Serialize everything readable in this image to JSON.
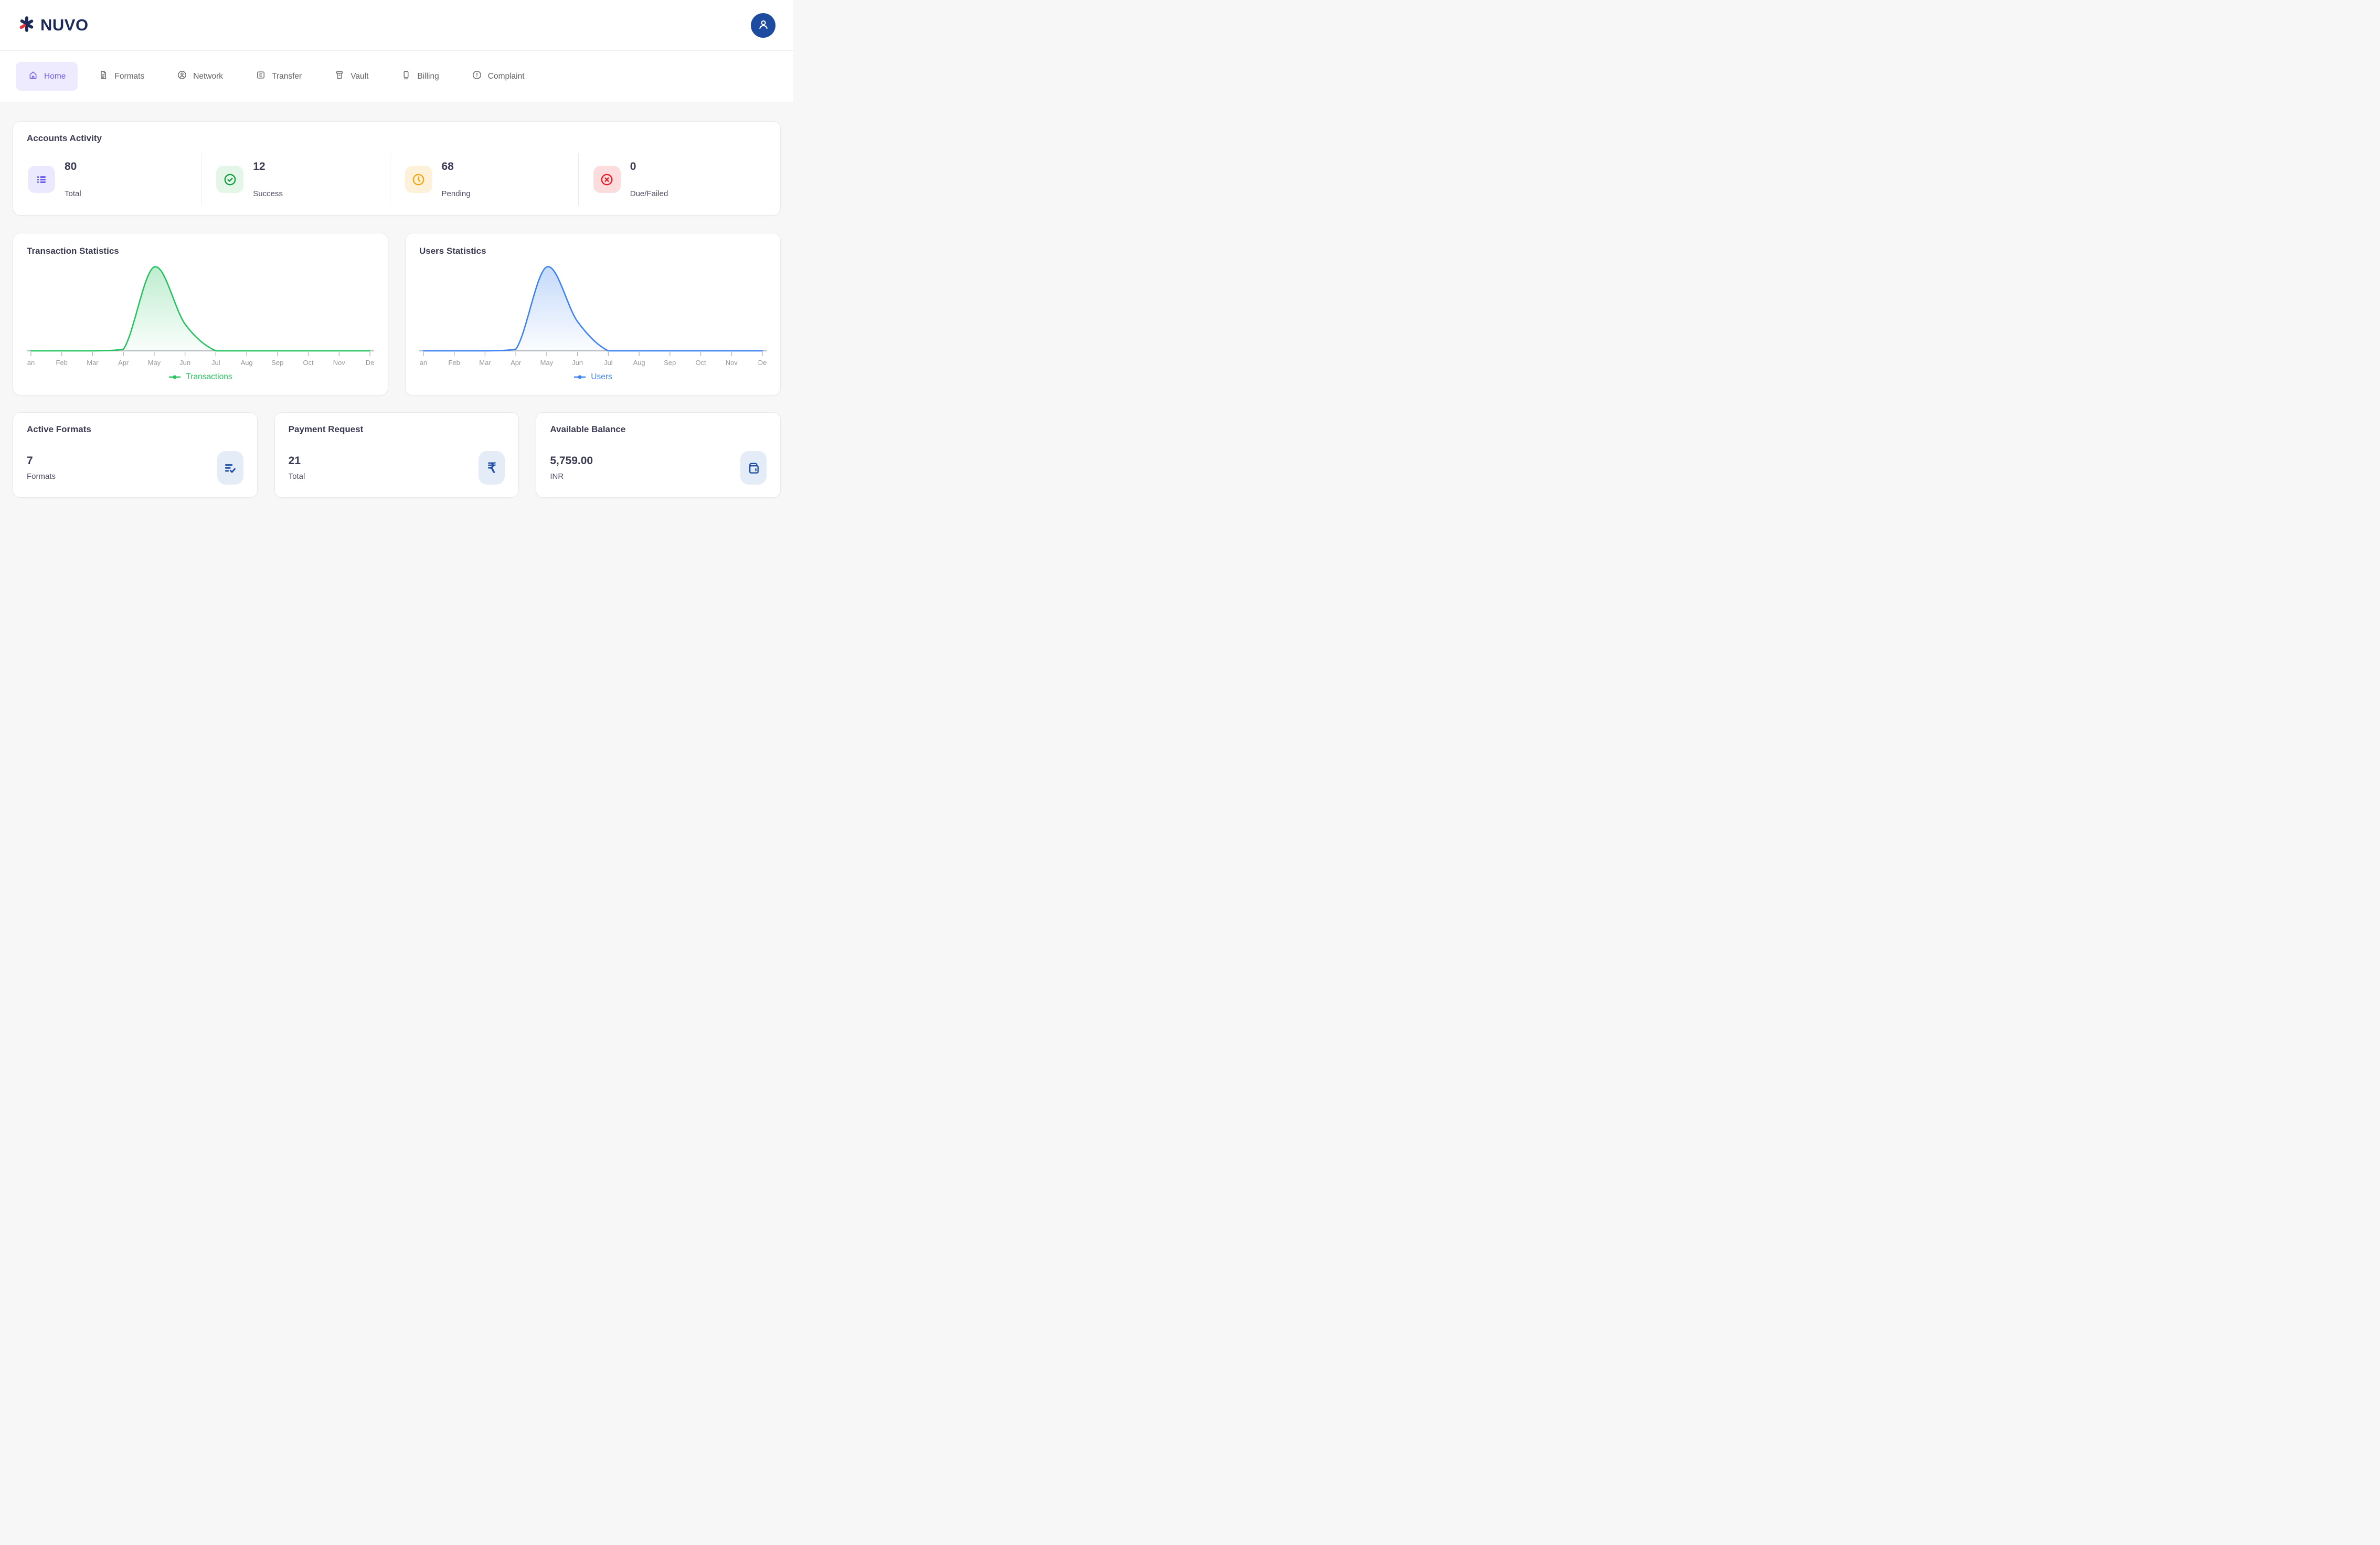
{
  "header": {
    "logo_text": "NUVO",
    "brand_navy": "#1c2a58",
    "brand_red": "#e9353e",
    "avatar_bg": "#1d4b9f"
  },
  "nav": {
    "items": [
      {
        "label": "Home",
        "icon": "home-icon",
        "active": true,
        "active_color": "#6e5ef0",
        "active_bg": "#edebfd"
      },
      {
        "label": "Formats",
        "icon": "document-icon",
        "active": false
      },
      {
        "label": "Network",
        "icon": "user-circle-icon",
        "active": false
      },
      {
        "label": "Transfer",
        "icon": "card-transfer-icon",
        "active": false
      },
      {
        "label": "Vault",
        "icon": "vault-icon",
        "active": false
      },
      {
        "label": "Billing",
        "icon": "billing-icon",
        "active": false
      },
      {
        "label": "Complaint",
        "icon": "alert-circle-icon",
        "active": false
      }
    ]
  },
  "accounts_activity": {
    "title": "Accounts Activity",
    "stats": [
      {
        "value": "80",
        "label": "Total",
        "icon": "list-icon",
        "accent": "#6b5bf0",
        "chip_bg": "#ebe9fd"
      },
      {
        "value": "12",
        "label": "Success",
        "icon": "check-circle-icon",
        "accent": "#109e3e",
        "chip_bg": "#e4f6e7"
      },
      {
        "value": "68",
        "label": "Pending",
        "icon": "clock-icon",
        "accent": "#f6a50b",
        "chip_bg": "#fdf1da"
      },
      {
        "value": "0",
        "label": "Due/Failed",
        "icon": "x-circle-icon",
        "accent": "#ee1b24",
        "chip_bg": "#fcdcdd"
      }
    ]
  },
  "chart_data": [
    {
      "type": "area",
      "title": "Transaction Statistics",
      "legend": "Transactions",
      "color": "#25c35f",
      "x_ticks": [
        "an",
        "Feb",
        "Mar",
        "Apr",
        "May",
        "Jun",
        "Jul",
        "Aug",
        "Sep",
        "Oct",
        "Nov",
        "De"
      ],
      "values": [
        0,
        0,
        0,
        2,
        100,
        32,
        0,
        0,
        0,
        0,
        0,
        0
      ],
      "ylim": [
        0,
        100
      ],
      "grid": false,
      "legend_position": "bottom",
      "axis_color": "#9aa0a6",
      "tick_label_color": "#97979d"
    },
    {
      "type": "area",
      "title": "Users Statistics",
      "legend": "Users",
      "color": "#3d82f2",
      "x_ticks": [
        "an",
        "Feb",
        "Mar",
        "Apr",
        "May",
        "Jun",
        "Jul",
        "Aug",
        "Sep",
        "Oct",
        "Nov",
        "De"
      ],
      "values": [
        0,
        0,
        0,
        2,
        100,
        35,
        0,
        0,
        0,
        0,
        0,
        0
      ],
      "ylim": [
        0,
        100
      ],
      "grid": false,
      "legend_position": "bottom",
      "axis_color": "#9aa0a6",
      "tick_label_color": "#97979d"
    }
  ],
  "summary_cards": [
    {
      "title": "Active Formats",
      "value": "7",
      "label": "Formats",
      "icon": "list-check-icon"
    },
    {
      "title": "Payment Request",
      "value": "21",
      "label": "Total",
      "icon": "rupee-icon",
      "rupee_glyph": "₹"
    },
    {
      "title": "Available Balance",
      "value": "5,759.00",
      "label": "INR",
      "icon": "wallet-icon"
    }
  ]
}
